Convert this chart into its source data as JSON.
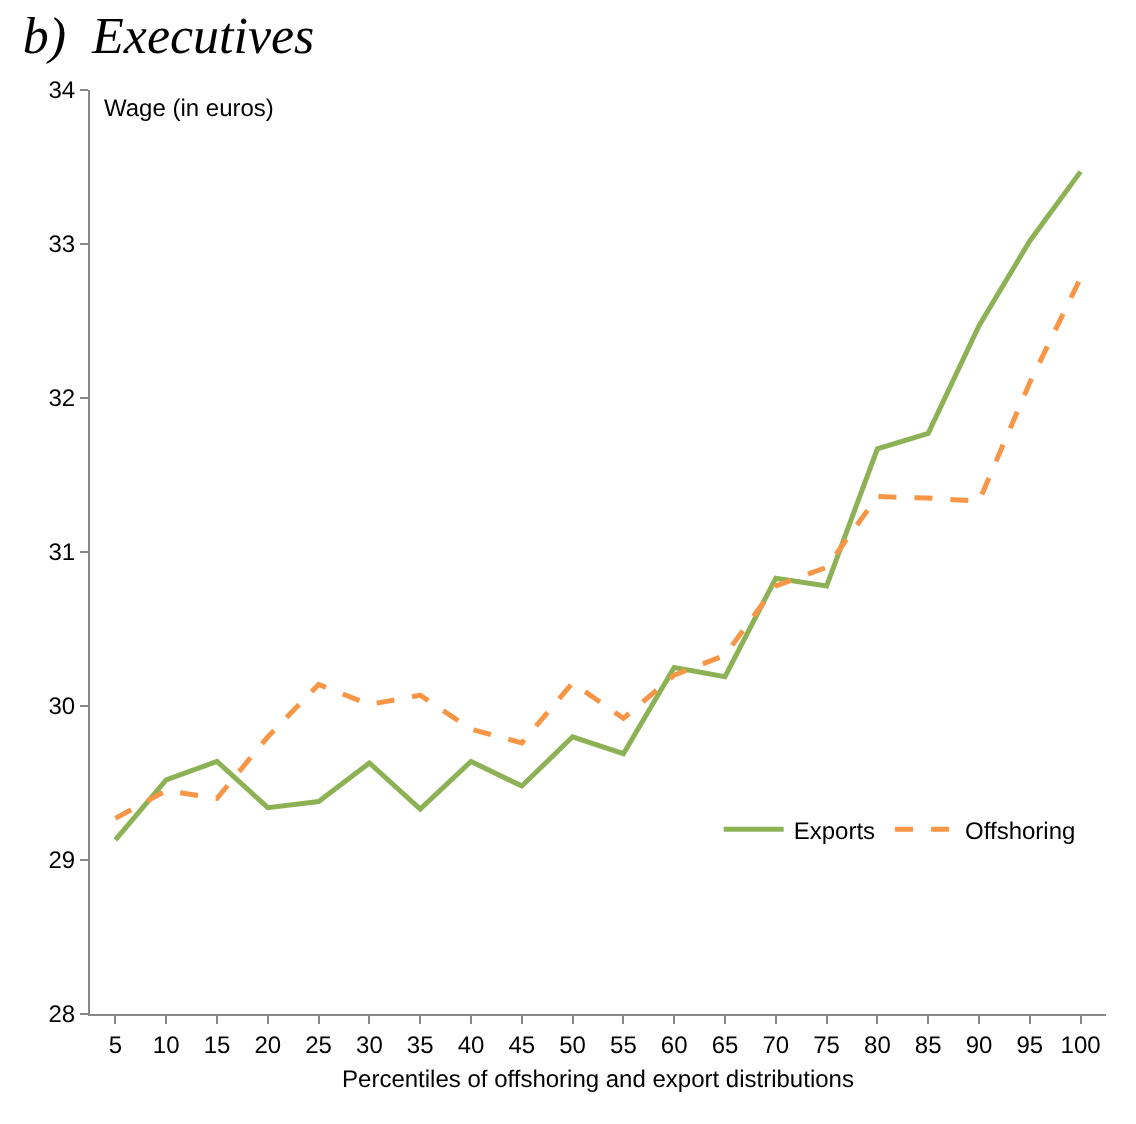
{
  "chart_data": {
    "type": "line",
    "title": "b)  Executives",
    "ylabel": "Wage (in euros)",
    "xlabel": "Percentiles of offshoring and export distributions",
    "categories": [
      "5",
      "10",
      "15",
      "20",
      "25",
      "30",
      "35",
      "40",
      "45",
      "50",
      "55",
      "60",
      "65",
      "70",
      "75",
      "80",
      "85",
      "90",
      "95",
      "100"
    ],
    "series": [
      {
        "name": "Exports",
        "color": "#8db255",
        "line_style": "solid",
        "values": [
          29.13,
          29.52,
          29.64,
          29.34,
          29.38,
          29.63,
          29.33,
          29.64,
          29.48,
          29.8,
          29.69,
          30.25,
          30.19,
          30.83,
          30.78,
          31.67,
          31.77,
          32.47,
          33.02,
          33.47
        ]
      },
      {
        "name": "Offshoring",
        "color": "#f79646",
        "line_style": "dashed",
        "values": [
          29.27,
          29.45,
          29.4,
          29.8,
          30.14,
          30.01,
          30.07,
          29.85,
          29.76,
          30.15,
          29.92,
          30.2,
          30.33,
          30.78,
          30.9,
          31.36,
          31.35,
          31.33,
          32.1,
          32.78
        ]
      }
    ],
    "ylim": [
      28,
      34
    ],
    "yticks": [
      28,
      29,
      30,
      31,
      32,
      33,
      34
    ],
    "legend": "bottom right",
    "marker": "none"
  }
}
